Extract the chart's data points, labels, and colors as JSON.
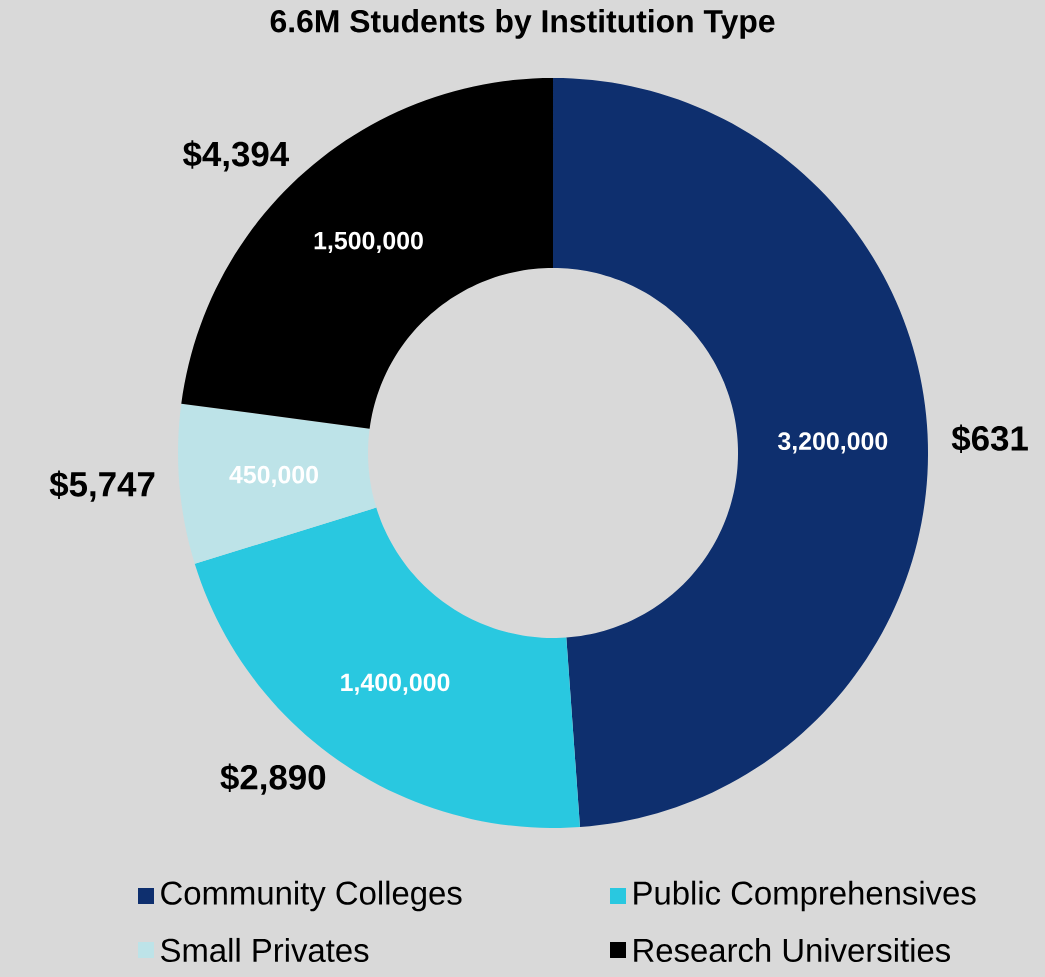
{
  "chart_data": {
    "type": "donut",
    "title": "6.6M Students by Institution Type",
    "categories": [
      "Community Colleges",
      "Public Comprehensives",
      "Small Privates",
      "Research Universities"
    ],
    "values": [
      3200000,
      1400000,
      450000,
      1500000
    ],
    "value_labels": [
      "3,200,000",
      "1,400,000",
      "450,000",
      "1,500,000"
    ],
    "colors": [
      "#0e2f6e",
      "#29c8e0",
      "#bde3e8",
      "#000000"
    ],
    "annotations": [
      "$631",
      "$2,890",
      "$5,747",
      "$4,394"
    ],
    "legend": "bottom"
  }
}
